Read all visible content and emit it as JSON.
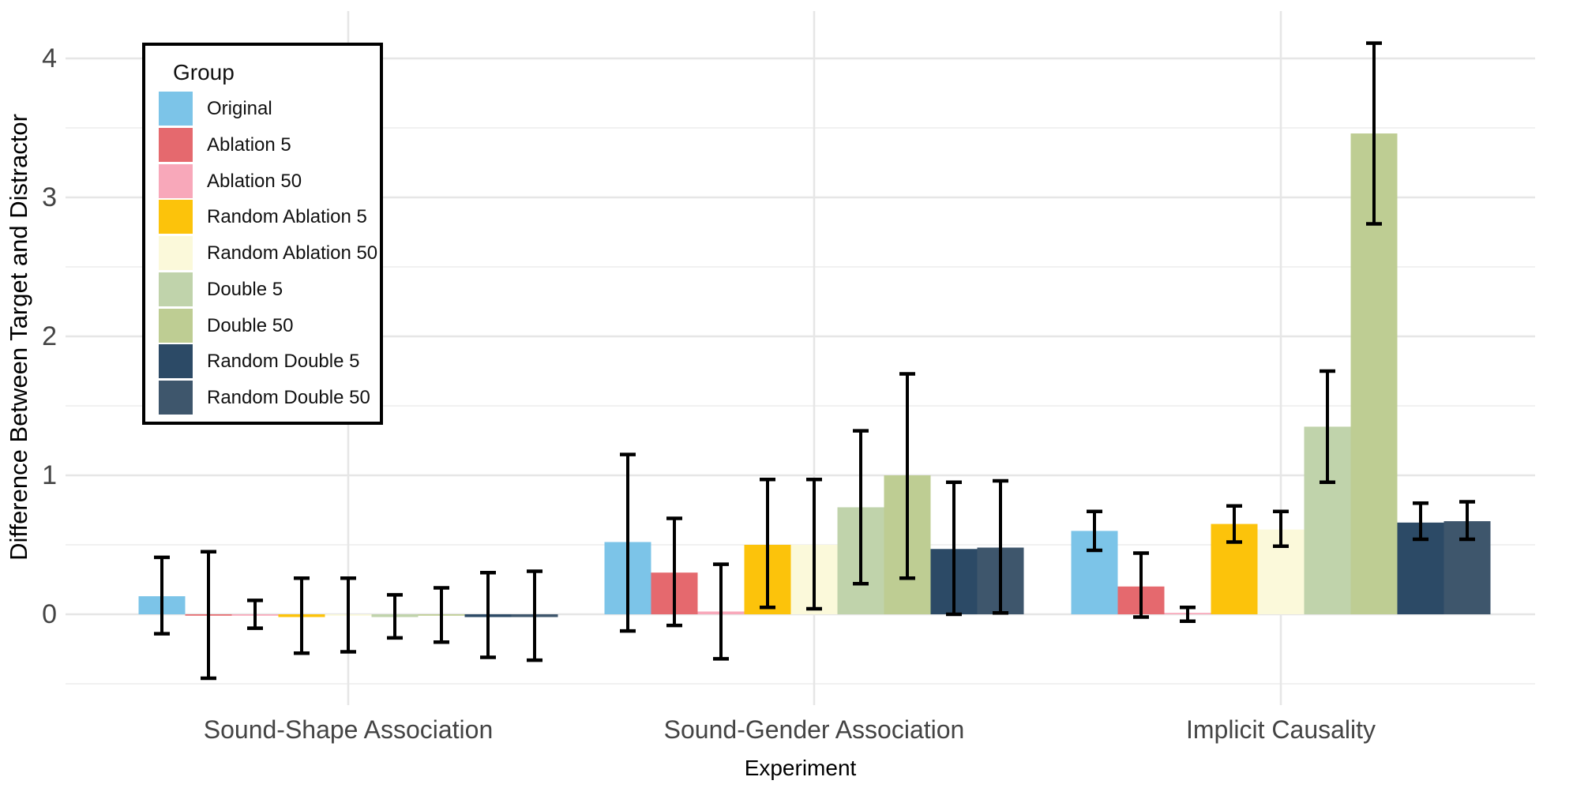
{
  "legend": {
    "title": "Group"
  },
  "chart_data": {
    "type": "bar",
    "title": "",
    "xlabel": "Experiment",
    "ylabel": "Difference Between Target and Distractor",
    "categories": [
      "Sound-Shape Association",
      "Sound-Gender Association",
      "Implicit Causality"
    ],
    "y_ticks": [
      0,
      1,
      2,
      3,
      4
    ],
    "y_minor_ticks": [
      -0.5,
      0.5,
      1.5,
      2.5,
      3.5
    ],
    "ylim": [
      -0.65,
      4.35
    ],
    "grid": "on",
    "legend_position": "top-left",
    "error_bars": true,
    "colors": {
      "grid_major": "#E6E6E6",
      "grid_minor": "#F1F1F1",
      "axis_text": "#444444",
      "axis_title": "#000000",
      "error_bar": "#000000"
    },
    "series": [
      {
        "name": "Original",
        "color": "#7CC4E8",
        "values": [
          0.13,
          0.52,
          0.6
        ],
        "err_low": [
          -0.14,
          -0.12,
          0.46
        ],
        "err_high": [
          0.41,
          1.15,
          0.74
        ]
      },
      {
        "name": "Ablation 5",
        "color": "#E5696E",
        "values": [
          -0.01,
          0.3,
          0.2
        ],
        "err_low": [
          -0.46,
          -0.08,
          -0.02
        ],
        "err_high": [
          0.45,
          0.69,
          0.44
        ]
      },
      {
        "name": "Ablation 50",
        "color": "#F8A8BA",
        "values": [
          -0.01,
          0.02,
          0.01
        ],
        "err_low": [
          -0.1,
          -0.32,
          -0.05
        ],
        "err_high": [
          0.1,
          0.36,
          0.05
        ]
      },
      {
        "name": "Random Ablation 5",
        "color": "#FCC30B",
        "values": [
          -0.02,
          0.5,
          0.65
        ],
        "err_low": [
          -0.28,
          0.05,
          0.52
        ],
        "err_high": [
          0.26,
          0.97,
          0.78
        ]
      },
      {
        "name": "Random Ablation 50",
        "color": "#FBF9DA",
        "values": [
          -0.01,
          0.5,
          0.61
        ],
        "err_low": [
          -0.27,
          0.04,
          0.49
        ],
        "err_high": [
          0.26,
          0.97,
          0.74
        ]
      },
      {
        "name": "Double 5",
        "color": "#C0D3AB",
        "values": [
          -0.02,
          0.77,
          1.35
        ],
        "err_low": [
          -0.17,
          0.22,
          0.95
        ],
        "err_high": [
          0.14,
          1.32,
          1.75
        ]
      },
      {
        "name": "Double 50",
        "color": "#BECD93",
        "values": [
          -0.01,
          1.0,
          3.46
        ],
        "err_low": [
          -0.2,
          0.26,
          2.81
        ],
        "err_high": [
          0.19,
          1.73,
          4.11
        ]
      },
      {
        "name": "Random Double 5",
        "color": "#2C4A66",
        "values": [
          -0.02,
          0.47,
          0.66
        ],
        "err_low": [
          -0.31,
          0.0,
          0.54
        ],
        "err_high": [
          0.3,
          0.95,
          0.8
        ]
      },
      {
        "name": "Random Double 50",
        "color": "#3E566C",
        "values": [
          -0.02,
          0.48,
          0.67
        ],
        "err_low": [
          -0.33,
          0.01,
          0.54
        ],
        "err_high": [
          0.31,
          0.96,
          0.81
        ]
      }
    ]
  }
}
